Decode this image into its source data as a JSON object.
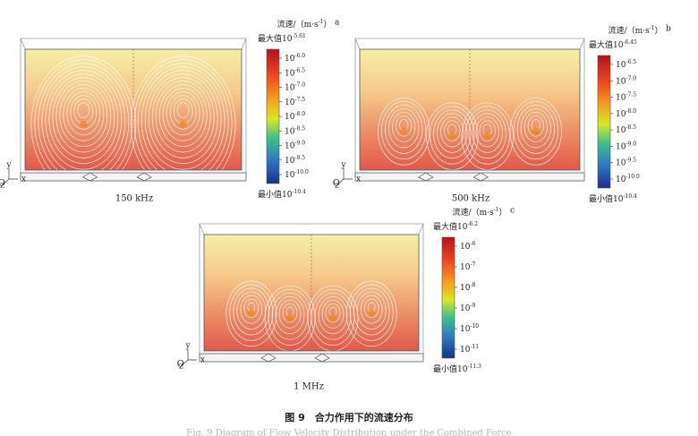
{
  "panels": [
    {
      "letter": "a",
      "caption": "150 kHz",
      "unit": {
        "prefix": "流速/（m·s",
        "exp": "-1",
        "suffix": "）"
      },
      "max": {
        "prefix": "最大值",
        "base": "10",
        "exp": "-5.61"
      },
      "ticks": [
        {
          "base": "10",
          "exp": "-6.0"
        },
        {
          "base": "10",
          "exp": "-6.5"
        },
        {
          "base": "10",
          "exp": "-7.0"
        },
        {
          "base": "10",
          "exp": "-7.5"
        },
        {
          "base": "10",
          "exp": "-8.0"
        },
        {
          "base": "10",
          "exp": "-8.5"
        },
        {
          "base": "10",
          "exp": "-9.0"
        },
        {
          "base": "10",
          "exp": "-9.5"
        },
        {
          "base": "10",
          "exp": "-10.0"
        }
      ],
      "min": {
        "prefix": "最小值",
        "base": "10",
        "exp": "-10.4"
      },
      "axes": {
        "y": "y",
        "z": "z",
        "x": "x",
        "o": "O"
      }
    },
    {
      "letter": "b",
      "caption": "500 kHz",
      "unit": {
        "prefix": "流速/（m·s",
        "exp": "-1",
        "suffix": "）"
      },
      "max": {
        "prefix": "最大值",
        "base": "10",
        "exp": "-6.45"
      },
      "ticks": [
        {
          "base": "10",
          "exp": "-6.5"
        },
        {
          "base": "10",
          "exp": "-7.0"
        },
        {
          "base": "10",
          "exp": "-7.5"
        },
        {
          "base": "10",
          "exp": "-8.0"
        },
        {
          "base": "10",
          "exp": "-8.5"
        },
        {
          "base": "10",
          "exp": "-9.0"
        },
        {
          "base": "10",
          "exp": "-9.5"
        },
        {
          "base": "10",
          "exp": "-10.0"
        }
      ],
      "min": {
        "prefix": "最小值",
        "base": "10",
        "exp": "-10.4"
      },
      "axes": {
        "y": "y",
        "z": "z",
        "x": "x",
        "o": "O"
      }
    },
    {
      "letter": "c",
      "caption": "1 MHz",
      "unit": {
        "prefix": "流速/（m·s",
        "exp": "-1",
        "suffix": "）"
      },
      "max": {
        "prefix": "最大值",
        "base": "10",
        "exp": "-6.2"
      },
      "ticks": [
        {
          "base": "10",
          "exp": "-6"
        },
        {
          "base": "10",
          "exp": "-7"
        },
        {
          "base": "10",
          "exp": "-8"
        },
        {
          "base": "10",
          "exp": "-9"
        },
        {
          "base": "10",
          "exp": "-10"
        },
        {
          "base": "10",
          "exp": "-11"
        }
      ],
      "min": {
        "prefix": "最小值",
        "base": "10",
        "exp": "-11.3"
      },
      "axes": {
        "y": "y",
        "z": "z",
        "x": "x",
        "o": "O"
      }
    }
  ],
  "figure": {
    "title": "图 9　合力作用下的流速分布",
    "title_en": "Fig. 9  Diagram of Flow Velocity Distribution under the Combined Force"
  }
}
